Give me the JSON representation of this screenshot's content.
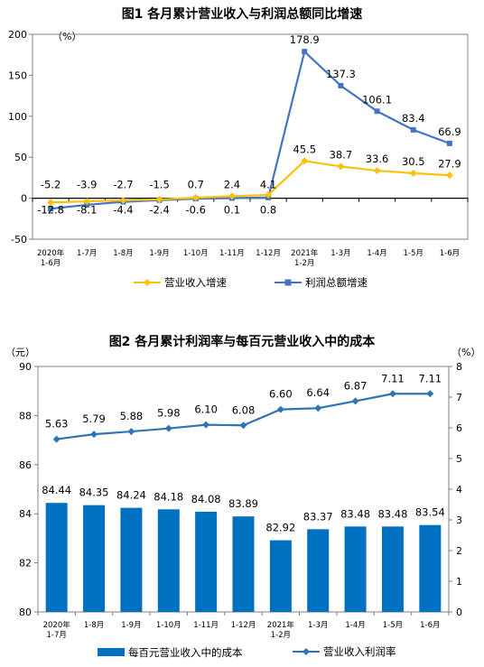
{
  "chart_data": [
    {
      "type": "line",
      "title": "图1  各月累计营业收入与利润总额同比增速",
      "unit_label": "（%）",
      "categories": [
        "2020年|1-6月",
        "1-7月",
        "1-8月",
        "1-9月",
        "1-10月",
        "1-11月",
        "1-12月",
        "2021年|1-2月",
        "1-3月",
        "1-4月",
        "1-5月",
        "1-6月"
      ],
      "ylim": [
        -50,
        200
      ],
      "yticks": [
        -50,
        0,
        50,
        100,
        150,
        200
      ],
      "series": [
        {
          "name": "营业收入增速",
          "color": "#fcc10e",
          "marker": "diamond",
          "values": [
            -5.2,
            -3.9,
            -2.7,
            -1.5,
            0.7,
            2.4,
            4.1,
            45.5,
            38.7,
            33.6,
            30.5,
            27.9
          ],
          "labels": [
            "-5.2",
            "-3.9",
            "-2.7",
            "-1.5",
            "0.7",
            "2.4",
            "4.1",
            "45.5",
            "38.7",
            "33.6",
            "30.5",
            "27.9"
          ]
        },
        {
          "name": "利润总额增速",
          "color": "#4472c4",
          "marker": "square",
          "values": [
            -12.8,
            -8.1,
            -4.4,
            -2.4,
            -0.6,
            0.1,
            0.8,
            178.9,
            137.3,
            106.1,
            83.4,
            66.9
          ],
          "labels": [
            "-12.8",
            "-8.1",
            "-4.4",
            "-2.4",
            "-0.6",
            "0.1",
            "0.8",
            "178.9",
            "137.3",
            "106.1",
            "83.4",
            "66.9"
          ]
        }
      ],
      "legend_position": "bottom"
    },
    {
      "type": "bar+line",
      "title": "图2  各月累计利润率与每百元营业收入中的成本",
      "left_unit_label": "（元）",
      "right_unit_label": "（%）",
      "categories": [
        "2020年|1-7月",
        "1-8月",
        "1-9月",
        "1-10月",
        "1-11月",
        "1-12月",
        "2021年|1-2月",
        "1-3月",
        "1-4月",
        "1-5月",
        "1-6月"
      ],
      "ylim_left": [
        80,
        90
      ],
      "yticks_left": [
        80,
        82,
        84,
        86,
        88,
        90
      ],
      "ylim_right": [
        0,
        8
      ],
      "yticks_right": [
        0,
        1,
        2,
        3,
        4,
        5,
        6,
        7,
        8
      ],
      "bars": {
        "name": "每百元营业收入中的成本",
        "color": "#0070c0",
        "values": [
          84.44,
          84.35,
          84.24,
          84.18,
          84.08,
          83.89,
          82.92,
          83.37,
          83.48,
          83.48,
          83.54
        ],
        "labels": [
          "84.44",
          "84.35",
          "84.24",
          "84.18",
          "84.08",
          "83.89",
          "82.92",
          "83.37",
          "83.48",
          "83.48",
          "83.54"
        ]
      },
      "line": {
        "name": "营业收入利润率",
        "color": "#2e75b6",
        "values": [
          5.63,
          5.79,
          5.88,
          5.98,
          6.1,
          6.08,
          6.6,
          6.64,
          6.87,
          7.11,
          7.11
        ],
        "labels": [
          "5.63",
          "5.79",
          "5.88",
          "5.98",
          "6.10",
          "6.08",
          "6.60",
          "6.64",
          "6.87",
          "7.11",
          "7.11"
        ]
      },
      "legend_position": "bottom"
    }
  ]
}
